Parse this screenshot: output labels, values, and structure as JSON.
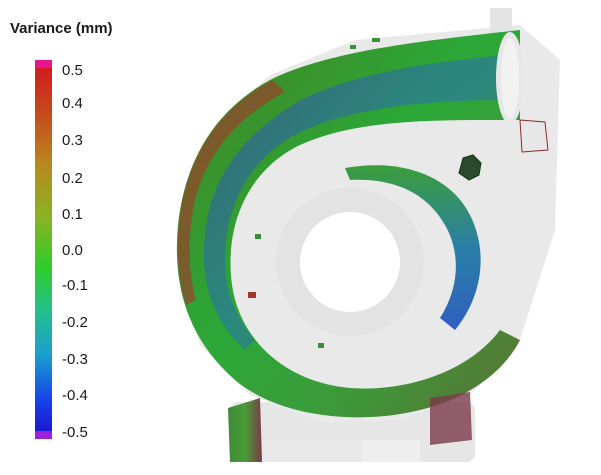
{
  "legend": {
    "title": "Variance (mm)",
    "ticks": [
      "0.5",
      "0.4",
      "0.3",
      "0.2",
      "0.1",
      "0.0",
      "-0.1",
      "-0.2",
      "-0.3",
      "-0.4",
      "-0.5"
    ],
    "top_cap_color": "#e8158f",
    "bottom_cap_color": "#9b22d8",
    "colors": {
      "red": "#d11d1d",
      "green": "#2ecc2a",
      "blue": "#1a1bd5",
      "uncovered_surface": "#e9e9e9"
    }
  },
  "viewport": {
    "object": "turbocharger-volute-scan"
  }
}
